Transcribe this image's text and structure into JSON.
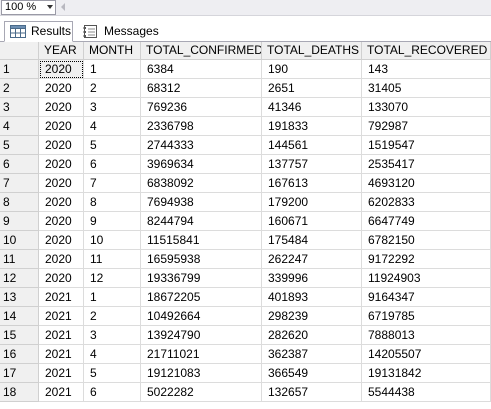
{
  "toolbar": {
    "zoom_value": "100 %"
  },
  "tabs": [
    {
      "label": "Results",
      "icon": "results-grid-icon"
    },
    {
      "label": "Messages",
      "icon": "messages-icon"
    }
  ],
  "grid": {
    "columns": [
      "YEAR",
      "MONTH",
      "TOTAL_CONFIRMED",
      "TOTAL_DEATHS",
      "TOTAL_RECOVERED"
    ],
    "rows": [
      [
        "1",
        "2020",
        "1",
        "6384",
        "190",
        "143"
      ],
      [
        "2",
        "2020",
        "2",
        "68312",
        "2651",
        "31405"
      ],
      [
        "3",
        "2020",
        "3",
        "769236",
        "41346",
        "133070"
      ],
      [
        "4",
        "2020",
        "4",
        "2336798",
        "191833",
        "792987"
      ],
      [
        "5",
        "2020",
        "5",
        "2744333",
        "144561",
        "1519547"
      ],
      [
        "6",
        "2020",
        "6",
        "3969634",
        "137757",
        "2535417"
      ],
      [
        "7",
        "2020",
        "7",
        "6838092",
        "167613",
        "4693120"
      ],
      [
        "8",
        "2020",
        "8",
        "7694938",
        "179200",
        "6202833"
      ],
      [
        "9",
        "2020",
        "9",
        "8244794",
        "160671",
        "6647749"
      ],
      [
        "10",
        "2020",
        "10",
        "11515841",
        "175484",
        "6782150"
      ],
      [
        "11",
        "2020",
        "11",
        "16595938",
        "262247",
        "9172292"
      ],
      [
        "12",
        "2020",
        "12",
        "19336799",
        "339996",
        "11924903"
      ],
      [
        "13",
        "2021",
        "1",
        "18672205",
        "401893",
        "9164347"
      ],
      [
        "14",
        "2021",
        "2",
        "10492664",
        "298239",
        "6719785"
      ],
      [
        "15",
        "2021",
        "3",
        "13924790",
        "282620",
        "7888013"
      ],
      [
        "16",
        "2021",
        "4",
        "21711021",
        "362387",
        "14205507"
      ],
      [
        "17",
        "2021",
        "5",
        "19121083",
        "366549",
        "19131842"
      ],
      [
        "18",
        "2021",
        "6",
        "5022282",
        "132657",
        "5544438"
      ]
    ]
  }
}
